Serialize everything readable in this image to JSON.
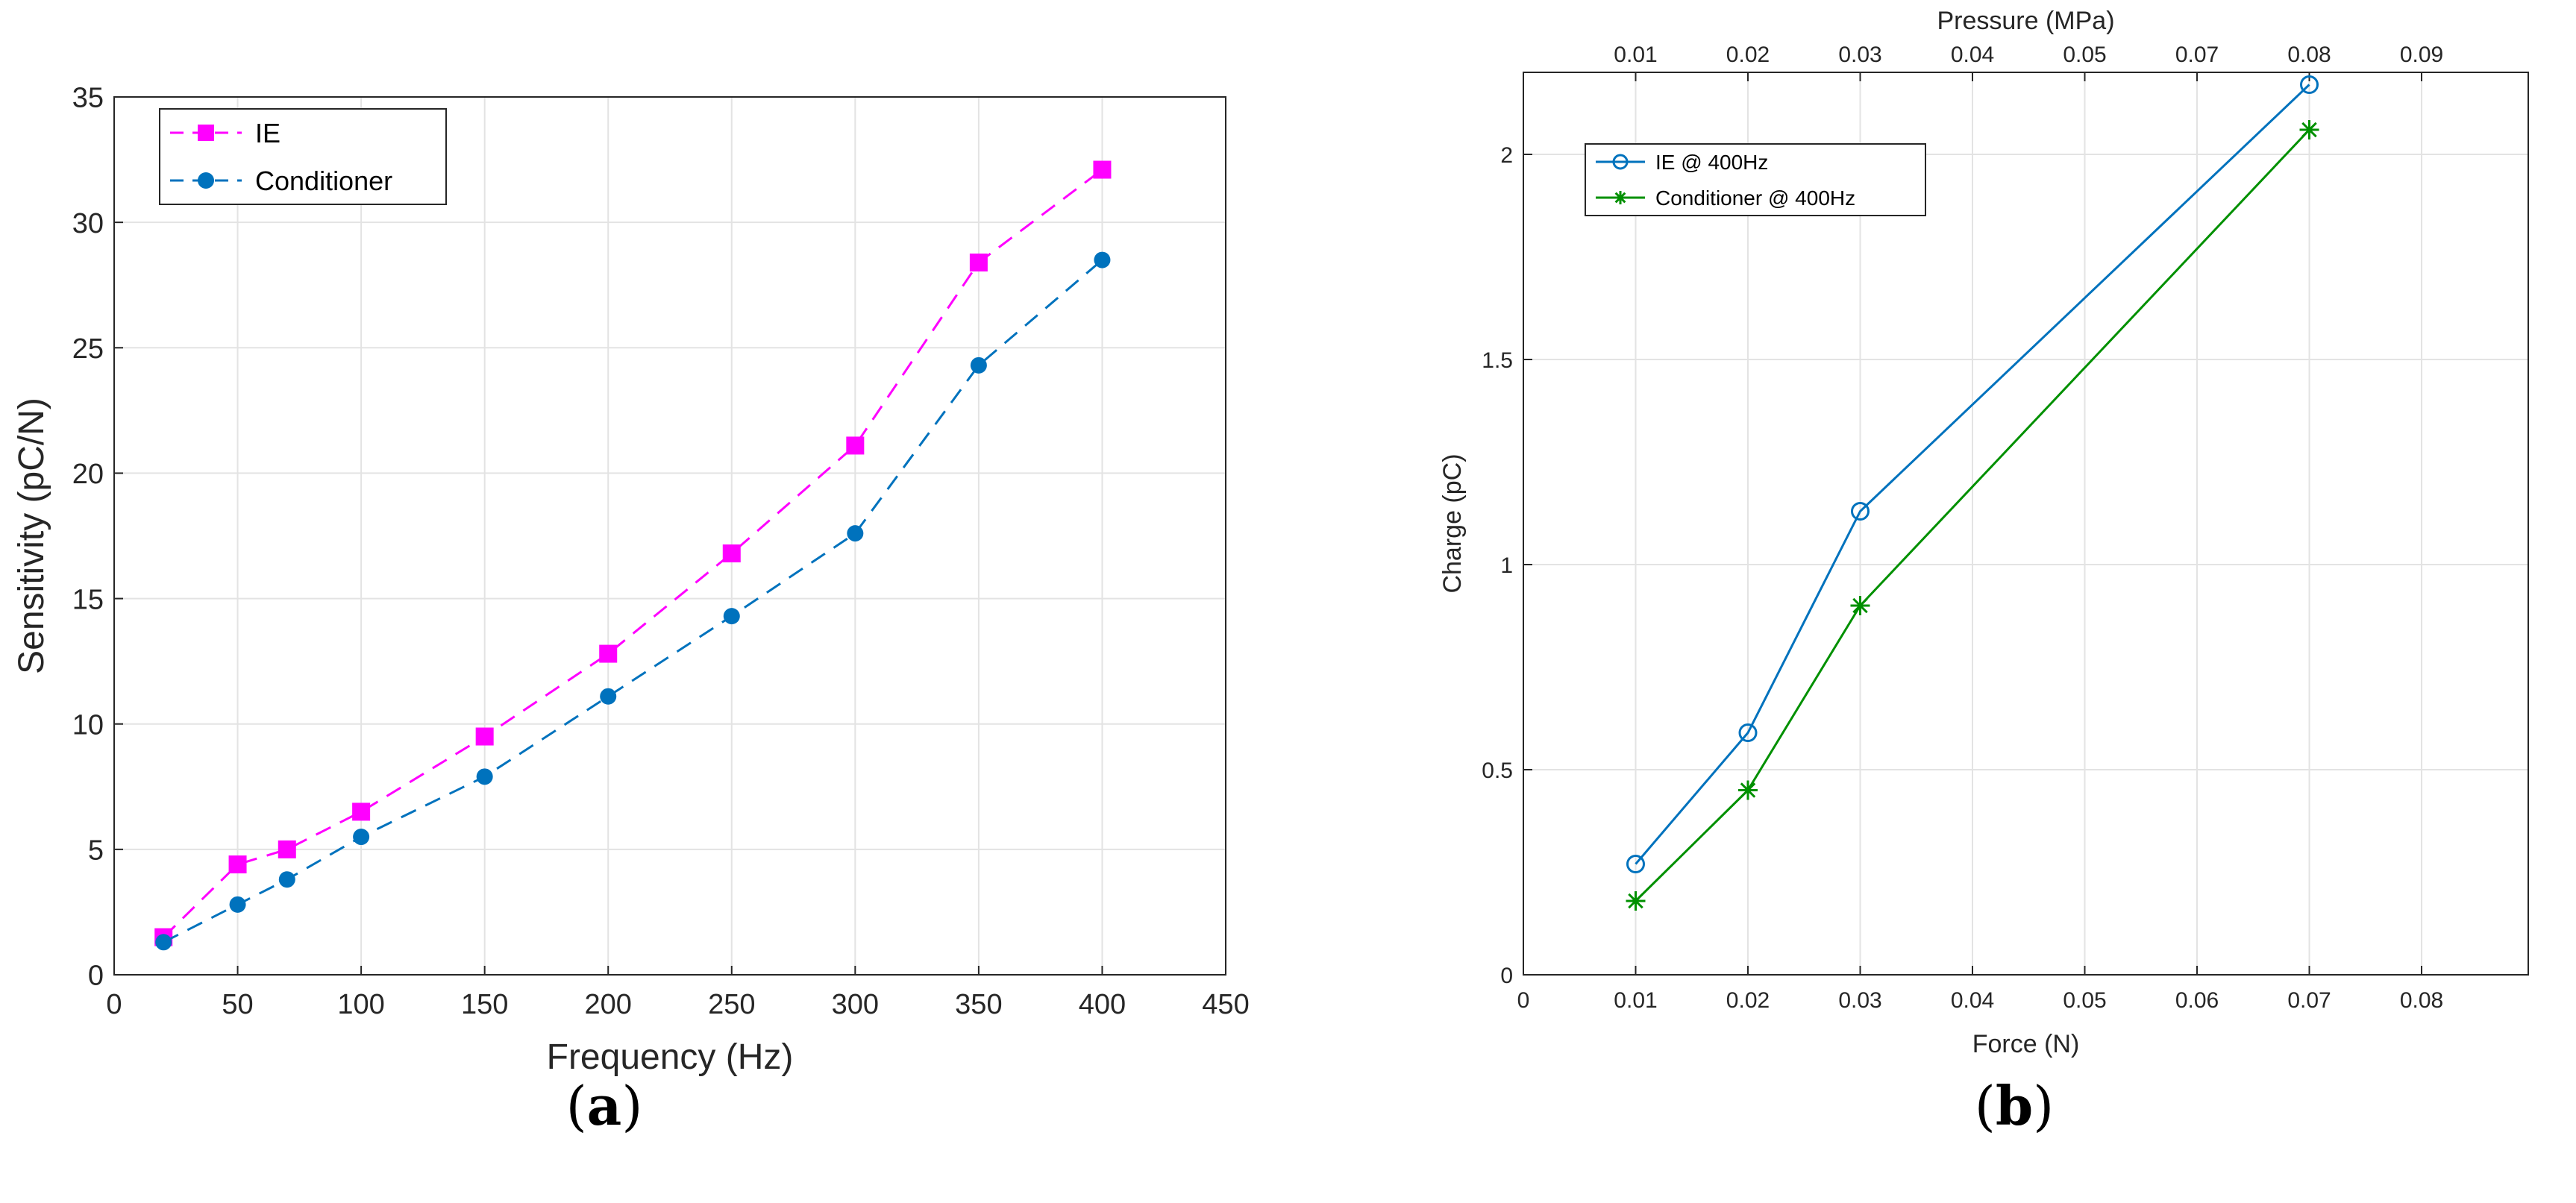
{
  "chart_data": [
    {
      "type": "line",
      "panel_label": "a",
      "title": "",
      "xlabel": "Frequency (Hz)",
      "ylabel": "Sensitivity (pC/N)",
      "xlim": [
        0,
        450
      ],
      "ylim": [
        0,
        35
      ],
      "xticks": [
        0,
        50,
        100,
        150,
        200,
        250,
        300,
        350,
        400,
        450
      ],
      "yticks": [
        0,
        5,
        10,
        15,
        20,
        25,
        30,
        35
      ],
      "grid": true,
      "legend_position": "top-left",
      "x": [
        20,
        50,
        70,
        100,
        150,
        200,
        250,
        300,
        350,
        400
      ],
      "series": [
        {
          "name": "IE",
          "color": "#ff00ff",
          "marker": "square",
          "line": "dashed",
          "values": [
            1.5,
            4.4,
            5.0,
            6.5,
            9.5,
            12.8,
            16.8,
            21.1,
            28.4,
            32.1
          ]
        },
        {
          "name": "Conditioner",
          "color": "#0072bd",
          "marker": "dot",
          "line": "dashed",
          "values": [
            1.3,
            2.8,
            3.8,
            5.5,
            7.9,
            11.1,
            14.3,
            17.6,
            24.3,
            28.5
          ]
        }
      ]
    },
    {
      "type": "line",
      "panel_label": "b",
      "title": "",
      "xlabel": "Force (N)",
      "ylabel": "Charge (pC)",
      "top_xlabel": "Pressure (MPa)",
      "xlim": [
        0,
        0.0895
      ],
      "ylim": [
        0,
        2.2
      ],
      "xticks": [
        0,
        0.01,
        0.02,
        0.03,
        0.04,
        0.05,
        0.06,
        0.07,
        0.08
      ],
      "xtick_labels": [
        "0",
        "0.01",
        "0.02",
        "0.03",
        "0.04",
        "0.05",
        "0.06",
        "0.07",
        "0.08"
      ],
      "yticks": [
        0,
        0.5,
        1,
        1.5,
        2
      ],
      "ytick_labels": [
        "0",
        "0.5",
        "1",
        "1.5",
        "2"
      ],
      "top_xticks": [
        0.01,
        0.02,
        0.03,
        0.04,
        0.05,
        0.06,
        0.07,
        0.08
      ],
      "top_xtick_labels": [
        "0.01",
        "0.02",
        "0.03",
        "0.04",
        "0.05",
        "0.07",
        "0.08",
        "0.09"
      ],
      "grid": true,
      "legend_position": "top-left",
      "x": [
        0.01,
        0.02,
        0.03,
        0.07
      ],
      "series": [
        {
          "name": "IE @ 400Hz",
          "color": "#0072bd",
          "marker": "circle-open",
          "line": "solid",
          "values": [
            0.27,
            0.59,
            1.13,
            2.17
          ]
        },
        {
          "name": "Conditioner @ 400Hz",
          "color": "#009000",
          "marker": "asterisk",
          "line": "solid",
          "values": [
            0.18,
            0.45,
            0.9,
            2.06
          ]
        }
      ]
    }
  ]
}
